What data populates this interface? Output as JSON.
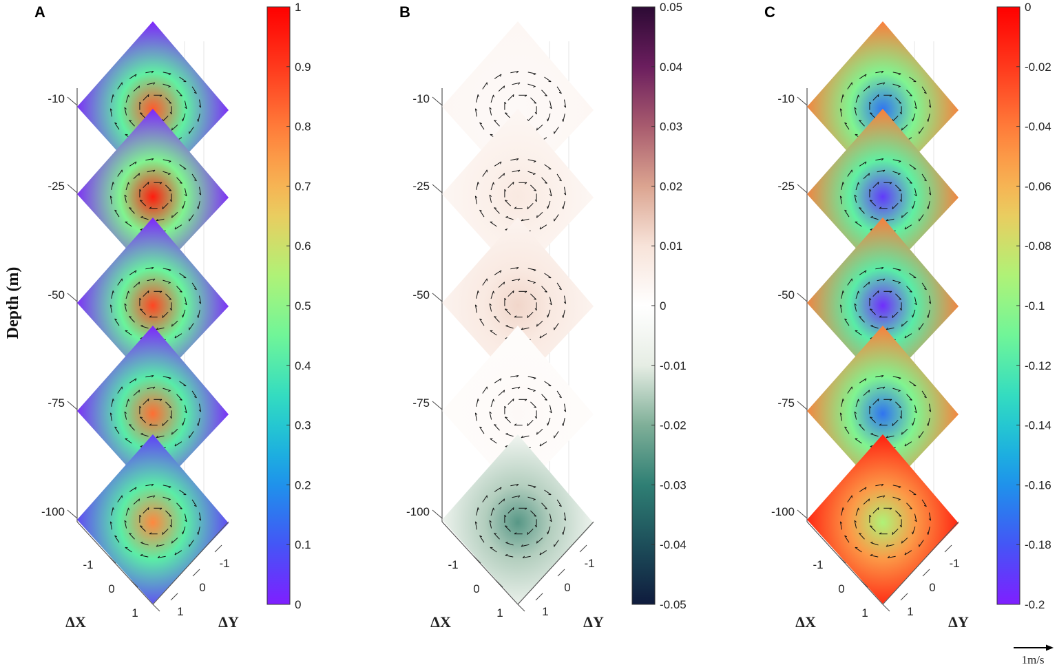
{
  "chart_data": {
    "type": "heatmap",
    "ylabel": "Depth (m)",
    "depths": [
      -10,
      -25,
      -50,
      -75,
      -100
    ],
    "depth_labels": [
      "-10",
      "-25",
      "-50",
      "-75",
      "-100"
    ],
    "xlabel": "ΔX",
    "yhlabel": "ΔY",
    "x_ticks": [
      "-1",
      "0",
      "1"
    ],
    "y_ticks": [
      "-1",
      "0",
      "1"
    ],
    "vector_scale_label": "1m/s",
    "panels": [
      {
        "label": "A",
        "colormap": "rainbow",
        "clim": [
          0,
          1
        ],
        "colorbar_ticks": [
          "1",
          "0.9",
          "0.8",
          "0.7",
          "0.6",
          "0.5",
          "0.4",
          "0.3",
          "0.2",
          "0.1",
          "0"
        ],
        "core_values": [
          0.85,
          0.95,
          0.88,
          0.82,
          0.78
        ],
        "edge_values": [
          0.0,
          0.0,
          0.0,
          0.0,
          0.05
        ]
      },
      {
        "label": "B",
        "colormap": "diverging",
        "clim": [
          -0.05,
          0.05
        ],
        "colorbar_ticks": [
          "0.05",
          "0.04",
          "0.03",
          "0.02",
          "0.01",
          "0",
          "-0.01",
          "-0.02",
          "-0.03",
          "-0.04",
          "-0.05"
        ],
        "core_values": [
          0.002,
          0.008,
          0.012,
          0.002,
          -0.025
        ],
        "edge_values": [
          0.003,
          0.003,
          0.004,
          0.001,
          -0.005
        ]
      },
      {
        "label": "C",
        "colormap": "rainbow",
        "clim": [
          -0.2,
          0
        ],
        "colorbar_ticks": [
          "0",
          "-0.02",
          "-0.04",
          "-0.06",
          "-0.08",
          "-0.1",
          "-0.12",
          "-0.14",
          "-0.16",
          "-0.18",
          "-0.2"
        ],
        "core_values": [
          -0.17,
          -0.19,
          -0.195,
          -0.17,
          -0.09
        ],
        "edge_values": [
          -0.04,
          -0.04,
          -0.04,
          -0.04,
          -0.01
        ]
      }
    ]
  }
}
